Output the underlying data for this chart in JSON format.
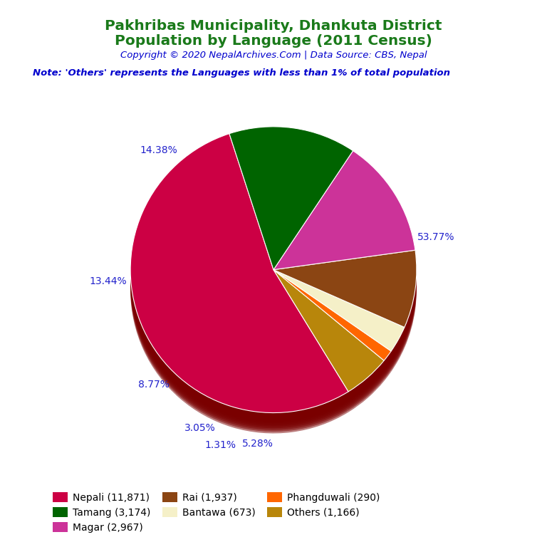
{
  "title_line1": "Pakhribas Municipality, Dhankuta District",
  "title_line2": "Population by Language (2011 Census)",
  "copyright": "Copyright © 2020 NepalArchives.Com | Data Source: CBS, Nepal",
  "note": "Note: 'Others' represents the Languages with less than 1% of total population",
  "labels": [
    "Nepali",
    "Others",
    "Phangduwali",
    "Bantawa",
    "Rai",
    "Magar",
    "Tamang"
  ],
  "values": [
    11871,
    1166,
    290,
    673,
    1937,
    2967,
    3174
  ],
  "percentages": [
    "53.77%",
    "5.28%",
    "1.31%",
    "3.05%",
    "8.77%",
    "13.44%",
    "14.38%"
  ],
  "colors": [
    "#CC0044",
    "#B8860B",
    "#FF6600",
    "#F5F0C8",
    "#8B4513",
    "#CC3399",
    "#006400"
  ],
  "legend_labels": [
    "Nepali (11,871)",
    "Tamang (3,174)",
    "Magar (2,967)",
    "Rai (1,937)",
    "Bantawa (673)",
    "Phangduwali (290)",
    "Others (1,166)"
  ],
  "legend_colors": [
    "#CC0044",
    "#006400",
    "#CC3399",
    "#8B4513",
    "#F5F0C8",
    "#FF6600",
    "#B8860B"
  ],
  "title_color": "#1a7a1a",
  "copyright_color": "#0000CD",
  "note_color": "#0000CD",
  "pct_color": "#2222CC",
  "background_color": "#FFFFFF",
  "shadow_color": "#7a0000",
  "startangle": 108
}
